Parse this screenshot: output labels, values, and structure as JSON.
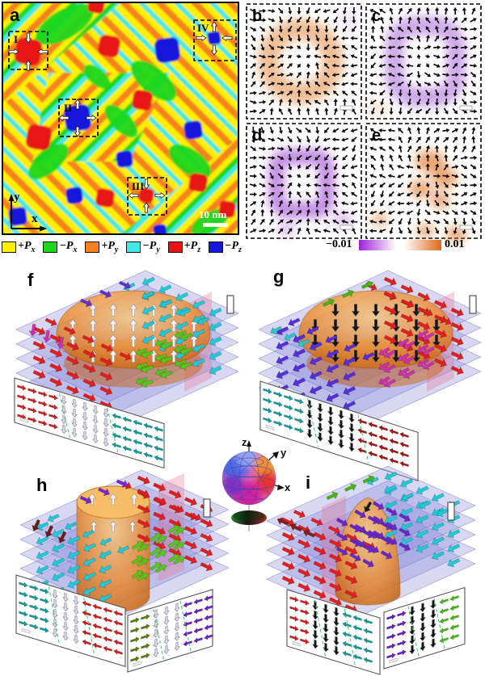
{
  "panel_a": {
    "label": "a",
    "axis_x": "x",
    "axis_y": "y",
    "scale_bar": "10 nm",
    "regions": [
      {
        "id": "I",
        "blob": "red",
        "arrows": "inward"
      },
      {
        "id": "II",
        "blob": "blue",
        "arrows": "outward"
      },
      {
        "id": "III",
        "blob": "red",
        "arrows": "vertical-in-horizontal-out"
      },
      {
        "id": "IV",
        "blob": "blue",
        "arrows": "vertical-out-horizontal-in"
      }
    ],
    "domain_colors": {
      "yellow": "#ffef00",
      "green": "#1ed71e",
      "orange": "#f5821e",
      "cyan": "#45e8e8",
      "red": "#e81414",
      "blue": "#1616dc"
    }
  },
  "legend": {
    "items": [
      {
        "sign": "+",
        "letter": "P",
        "sub": "x",
        "color": "#ffef00"
      },
      {
        "sign": "−",
        "letter": "P",
        "sub": "x",
        "color": "#1ed71e"
      },
      {
        "sign": "+",
        "letter": "P",
        "sub": "y",
        "color": "#f5821e"
      },
      {
        "sign": "−",
        "letter": "P",
        "sub": "y",
        "color": "#45e8e8"
      },
      {
        "sign": "+",
        "letter": "P",
        "sub": "z",
        "color": "#e81414"
      },
      {
        "sign": "−",
        "letter": "P",
        "sub": "z",
        "color": "#1616dc"
      }
    ]
  },
  "vector_panels": [
    {
      "label": "b",
      "shade": "#e2873a",
      "shape": "ring-circle",
      "field": "in"
    },
    {
      "label": "c",
      "shade": "#a560d8",
      "shape": "ring-square",
      "field": "out"
    },
    {
      "label": "d",
      "shade": "#9b40d0",
      "shape": "blob-square",
      "field": "in"
    },
    {
      "label": "e",
      "shade": "#e06a10",
      "shape": "blob-irregular",
      "field": "out"
    }
  ],
  "colorbar": {
    "min": "−0.01",
    "max": "0.01",
    "neg": "#a020d8",
    "mid": "#ffffff",
    "pos": "#e06818"
  },
  "panels_3d": [
    {
      "label": "f",
      "core": "dome",
      "core_arrow_dir": "up",
      "core_arrow_color": "#f2f2f8",
      "left": "#e02020",
      "right": "#22c8d8",
      "front": "#52c81a",
      "accent": "#6030d0",
      "accent2": "#cc30b0",
      "section_colors": [
        [
          "#cc2020",
          "#e0e0ea",
          "#189898"
        ]
      ]
    },
    {
      "label": "g",
      "core": "dome",
      "core_arrow_dir": "down",
      "core_arrow_color": "#16161e",
      "left": "#5530d8",
      "right": "#e02020",
      "front": "#cc30b0",
      "accent": "#46b414",
      "accent2": "#28c8c8",
      "section_colors": [
        [
          "#189898",
          "#101010",
          "#a01818"
        ]
      ]
    },
    {
      "label": "h",
      "core": "tube",
      "core_arrow_dir": "up",
      "core_arrow_color": "#f2f2f8",
      "left": "#22c8d8",
      "right": "#e02020",
      "front": "#58c818",
      "accent": "#7a28c8",
      "accent2": "#701818",
      "section_colors": [
        [
          "#189898",
          "#e0e0ea",
          "#cc2020"
        ],
        [
          "#5a7a10",
          "#e0e0ea",
          "#6a20c0"
        ]
      ]
    },
    {
      "label": "i",
      "core": "teardrop",
      "core_arrow_dir": "mixed",
      "core_arrow_color": "#6a28c8",
      "left": "#e02020",
      "right": "#22c8d8",
      "front": "#6a28c8",
      "accent": "#46b414",
      "accent2": "#802020",
      "section_colors": [
        [
          "#cc2020",
          "#101010",
          "#189898"
        ],
        [
          "#6a20c0",
          "#101010",
          "#46b414"
        ]
      ]
    }
  ],
  "sphere": {
    "axis_z": "z",
    "axis_y": "y",
    "axis_x": "x"
  }
}
